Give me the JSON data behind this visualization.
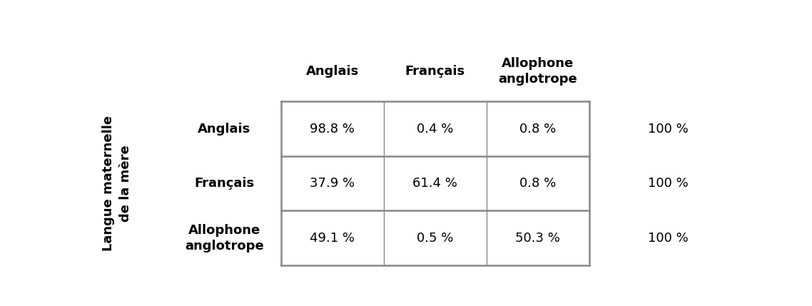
{
  "col_headers": [
    "Anglais",
    "Français",
    "Allophone\nanglotrope"
  ],
  "row_headers": [
    "Anglais",
    "Français",
    "Allophone\nanglotrope"
  ],
  "cell_values": [
    [
      "98.8 %",
      "0.4 %",
      "0.8 %"
    ],
    [
      "37.9 %",
      "61.4 %",
      "0.8 %"
    ],
    [
      "49.1 %",
      "0.5 %",
      "50.3 %"
    ]
  ],
  "row_totals": [
    "100 %",
    "100 %",
    "100 %"
  ],
  "ylabel": "Langue maternelle\nde la mère",
  "background_color": "#ffffff",
  "grid_color": "#888888",
  "text_color": "#000000",
  "header_fontsize": 13,
  "cell_fontsize": 13,
  "ylabel_fontsize": 13,
  "total_fontsize": 13,
  "row_header_fontsize": 13
}
